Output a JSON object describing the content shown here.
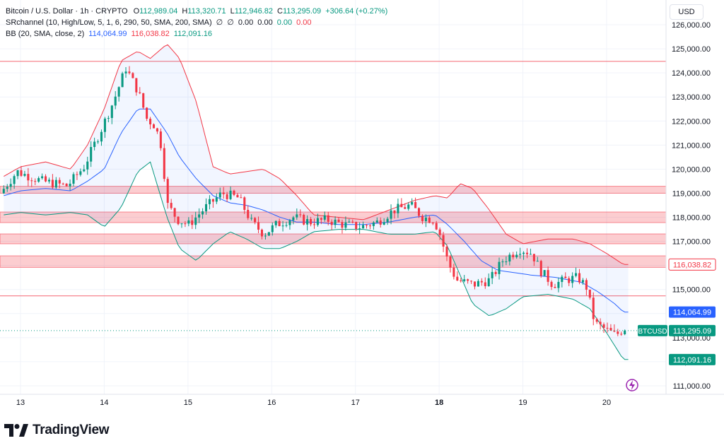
{
  "legend": {
    "symbol": "Bitcoin / U.S. Dollar · 1h · CRYPTO",
    "open_label": "O",
    "open": "112,989.04",
    "high_label": "H",
    "high": "113,320.71",
    "low_label": "L",
    "low": "112,946.82",
    "close_label": "C",
    "close": "113,295.09",
    "change": "+306.64 (+0.27%)",
    "sr_label": "SRchannel (10, High/Low, 5, 1, 6, 290, 50, SMA, 200, SMA)",
    "sr_phi1": "∅",
    "sr_phi2": "∅",
    "sr_v1": "0.00",
    "sr_v2": "0.00",
    "sr_v3": "0.00",
    "sr_v4": "0.00",
    "bb_label": "BB (20, SMA, close, 2)",
    "bb_basis": "114,064.99",
    "bb_upper": "116,038.82",
    "bb_lower": "112,091.16"
  },
  "currency_button": "USD",
  "brand": {
    "name": "TradingView"
  },
  "colors": {
    "up": "#089981",
    "down": "#f23645",
    "basis": "#2962ff",
    "upper": "#f23645",
    "lower": "#089981",
    "zone": "#f7a9ac"
  },
  "chart_data": {
    "type": "candlestick",
    "title": "Bitcoin / U.S. Dollar · 1h · CRYPTO",
    "y_range": [
      110600,
      126300
    ],
    "y_ticks": [
      111000,
      112000,
      113000,
      114000,
      115000,
      116000,
      117000,
      118000,
      119000,
      120000,
      121000,
      122000,
      123000,
      124000,
      125000,
      126000
    ],
    "y_tick_labels": [
      "111,000.00",
      "112,000.00",
      "113,000.00",
      "114,000.00",
      "115,000.00",
      "116,000.00",
      "117,000.00",
      "118,000.00",
      "119,000.00",
      "120,000.00",
      "121,000.00",
      "122,000.00",
      "123,000.00",
      "124,000.00",
      "125,000.00",
      "126,000.00"
    ],
    "x_ticks": [
      {
        "day": 13,
        "label": "13",
        "bold": false
      },
      {
        "day": 14,
        "label": "14",
        "bold": false
      },
      {
        "day": 15,
        "label": "15",
        "bold": false
      },
      {
        "day": 16,
        "label": "16",
        "bold": false
      },
      {
        "day": 17,
        "label": "17",
        "bold": false
      },
      {
        "day": 18,
        "label": "18",
        "bold": true
      },
      {
        "day": 19,
        "label": "19",
        "bold": false
      },
      {
        "day": 20,
        "label": "20",
        "bold": false
      }
    ],
    "x_start_day": 12.8,
    "x_end_day": 20.3,
    "price_keypoints": [
      [
        12.8,
        119000
      ],
      [
        13.0,
        119900
      ],
      [
        13.3,
        119500
      ],
      [
        13.6,
        119300
      ],
      [
        13.8,
        120100
      ],
      [
        14.0,
        121600
      ],
      [
        14.15,
        122800
      ],
      [
        14.3,
        124200
      ],
      [
        14.45,
        123200
      ],
      [
        14.55,
        122100
      ],
      [
        14.65,
        121800
      ],
      [
        14.72,
        121000
      ],
      [
        14.8,
        118500
      ],
      [
        14.92,
        117900
      ],
      [
        15.05,
        117700
      ],
      [
        15.25,
        118400
      ],
      [
        15.45,
        119000
      ],
      [
        15.65,
        118800
      ],
      [
        15.8,
        117800
      ],
      [
        15.95,
        117300
      ],
      [
        16.1,
        117700
      ],
      [
        16.3,
        118000
      ],
      [
        16.5,
        117800
      ],
      [
        16.7,
        117900
      ],
      [
        16.9,
        117700
      ],
      [
        17.1,
        117600
      ],
      [
        17.3,
        117800
      ],
      [
        17.5,
        118300
      ],
      [
        17.7,
        118500
      ],
      [
        17.85,
        118000
      ],
      [
        17.98,
        117900
      ],
      [
        18.05,
        117300
      ],
      [
        18.15,
        116100
      ],
      [
        18.25,
        115400
      ],
      [
        18.45,
        115200
      ],
      [
        18.65,
        115400
      ],
      [
        18.8,
        116200
      ],
      [
        19.0,
        116700
      ],
      [
        19.15,
        116500
      ],
      [
        19.25,
        115800
      ],
      [
        19.4,
        115200
      ],
      [
        19.55,
        115400
      ],
      [
        19.7,
        115500
      ],
      [
        19.8,
        115100
      ],
      [
        19.9,
        113600
      ],
      [
        20.05,
        113300
      ],
      [
        20.15,
        113100
      ],
      [
        20.22,
        113300
      ]
    ],
    "bollinger_keypoints": {
      "upper": [
        [
          12.8,
          119700
        ],
        [
          13.0,
          120100
        ],
        [
          13.3,
          120300
        ],
        [
          13.6,
          120000
        ],
        [
          13.8,
          121000
        ],
        [
          14.0,
          122500
        ],
        [
          14.2,
          124500
        ],
        [
          14.4,
          124900
        ],
        [
          14.55,
          124600
        ],
        [
          14.75,
          125200
        ],
        [
          14.9,
          124600
        ],
        [
          15.1,
          122800
        ],
        [
          15.3,
          120100
        ],
        [
          15.5,
          119800
        ],
        [
          15.7,
          119900
        ],
        [
          15.9,
          120000
        ],
        [
          16.1,
          119600
        ],
        [
          16.3,
          118900
        ],
        [
          16.5,
          118100
        ],
        [
          16.8,
          118000
        ],
        [
          17.1,
          117900
        ],
        [
          17.4,
          118300
        ],
        [
          17.7,
          118700
        ],
        [
          17.95,
          118900
        ],
        [
          18.1,
          118800
        ],
        [
          18.25,
          119400
        ],
        [
          18.4,
          119200
        ],
        [
          18.6,
          118300
        ],
        [
          18.8,
          117300
        ],
        [
          19.0,
          116900
        ],
        [
          19.3,
          117100
        ],
        [
          19.6,
          117100
        ],
        [
          19.8,
          116900
        ],
        [
          20.0,
          116500
        ],
        [
          20.2,
          116040
        ]
      ],
      "basis": [
        [
          12.8,
          118900
        ],
        [
          13.0,
          119100
        ],
        [
          13.3,
          119200
        ],
        [
          13.6,
          119100
        ],
        [
          13.8,
          119500
        ],
        [
          14.0,
          120000
        ],
        [
          14.2,
          121500
        ],
        [
          14.4,
          122500
        ],
        [
          14.55,
          122500
        ],
        [
          14.75,
          121500
        ],
        [
          14.9,
          120500
        ],
        [
          15.1,
          119600
        ],
        [
          15.3,
          118900
        ],
        [
          15.5,
          118600
        ],
        [
          15.7,
          118500
        ],
        [
          15.9,
          118300
        ],
        [
          16.1,
          118000
        ],
        [
          16.3,
          117800
        ],
        [
          16.5,
          117800
        ],
        [
          16.8,
          117700
        ],
        [
          17.1,
          117700
        ],
        [
          17.4,
          117800
        ],
        [
          17.7,
          118000
        ],
        [
          17.95,
          118100
        ],
        [
          18.1,
          117700
        ],
        [
          18.3,
          117000
        ],
        [
          18.5,
          116200
        ],
        [
          18.7,
          115800
        ],
        [
          18.9,
          115700
        ],
        [
          19.1,
          115600
        ],
        [
          19.4,
          115500
        ],
        [
          19.7,
          115300
        ],
        [
          19.9,
          114900
        ],
        [
          20.1,
          114400
        ],
        [
          20.2,
          114065
        ]
      ],
      "lower": [
        [
          12.8,
          118100
        ],
        [
          13.0,
          118200
        ],
        [
          13.3,
          118100
        ],
        [
          13.6,
          118200
        ],
        [
          13.8,
          118100
        ],
        [
          14.0,
          117600
        ],
        [
          14.2,
          118400
        ],
        [
          14.4,
          119900
        ],
        [
          14.55,
          120300
        ],
        [
          14.75,
          118000
        ],
        [
          14.9,
          116700
        ],
        [
          15.1,
          116200
        ],
        [
          15.3,
          116900
        ],
        [
          15.5,
          117400
        ],
        [
          15.7,
          117100
        ],
        [
          15.9,
          116700
        ],
        [
          16.1,
          116700
        ],
        [
          16.3,
          117000
        ],
        [
          16.5,
          117400
        ],
        [
          16.8,
          117500
        ],
        [
          17.1,
          117500
        ],
        [
          17.4,
          117300
        ],
        [
          17.7,
          117300
        ],
        [
          17.95,
          117400
        ],
        [
          18.1,
          116800
        ],
        [
          18.25,
          115600
        ],
        [
          18.4,
          114400
        ],
        [
          18.6,
          113900
        ],
        [
          18.8,
          114200
        ],
        [
          19.0,
          114700
        ],
        [
          19.3,
          114800
        ],
        [
          19.6,
          114600
        ],
        [
          19.8,
          114200
        ],
        [
          20.0,
          113200
        ],
        [
          20.2,
          112091
        ]
      ]
    },
    "sr_zones": [
      {
        "low": 119000,
        "high": 119290
      },
      {
        "low": 117780,
        "high": 118220
      },
      {
        "low": 116900,
        "high": 117310
      },
      {
        "low": 115920,
        "high": 116400
      }
    ],
    "sr_lines": [
      124480,
      114740
    ],
    "price_labels": [
      {
        "value": 116038.82,
        "text": "116,038.82",
        "color": "#f23645",
        "text_color": "#f23645",
        "style": "outline"
      },
      {
        "value": 114064.99,
        "text": "114,064.99",
        "color": "#2962ff",
        "text_color": "#ffffff",
        "style": "solid"
      },
      {
        "value": 113295.09,
        "text": "113,295.09",
        "color": "#089981",
        "text_color": "#ffffff",
        "style": "solid",
        "tag": "BTCUSD"
      },
      {
        "value": 112091.16,
        "text": "112,091.16",
        "color": "#089981",
        "text_color": "#ffffff",
        "style": "solid"
      }
    ],
    "last_price": 113295.09
  }
}
